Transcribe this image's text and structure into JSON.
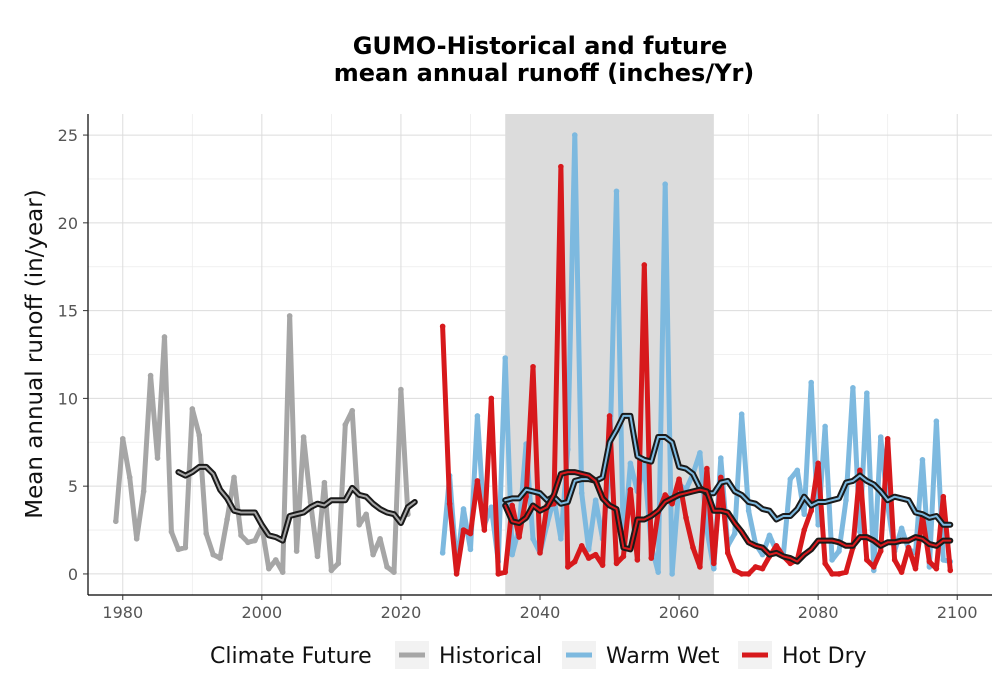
{
  "chart_data": {
    "type": "line",
    "title_lines": [
      "GUMO-Historical and future",
      "mean annual runoff (inches/Yr)"
    ],
    "xlabel": "",
    "ylabel": "Mean annual runoff (in/year)",
    "xlim": [
      1975,
      2105
    ],
    "ylim": [
      -1.2,
      26.2
    ],
    "x_ticks": [
      1980,
      2000,
      2020,
      2040,
      2060,
      2080,
      2100
    ],
    "y_ticks": [
      0,
      5,
      10,
      15,
      20,
      25
    ],
    "grid": true,
    "shaded_period": [
      2035,
      2065
    ],
    "shaded_color": "#dcdcdc",
    "legend": {
      "title": "Climate Future",
      "placement": "bottom",
      "entries": [
        {
          "label": "Historical",
          "color": "#a6a6a6"
        },
        {
          "label": "Warm Wet",
          "color": "#7db9df"
        },
        {
          "label": "Hot Dry",
          "color": "#d7191c"
        }
      ]
    },
    "series": [
      {
        "name": "Historical",
        "color": "#a6a6a6",
        "style": "annual",
        "x": [
          1979,
          1980,
          1981,
          1982,
          1983,
          1984,
          1985,
          1986,
          1987,
          1988,
          1989,
          1990,
          1991,
          1992,
          1993,
          1994,
          1995,
          1996,
          1997,
          1998,
          1999,
          2000,
          2001,
          2002,
          2003,
          2004,
          2005,
          2006,
          2007,
          2008,
          2009,
          2010,
          2011,
          2012,
          2013,
          2014,
          2015,
          2016,
          2017,
          2018,
          2019,
          2020,
          2021,
          2022
        ],
        "y": [
          3.0,
          7.7,
          5.5,
          2.0,
          4.7,
          11.3,
          6.6,
          13.5,
          2.4,
          1.4,
          1.5,
          9.4,
          7.9,
          2.3,
          1.1,
          0.9,
          3.1,
          5.5,
          2.2,
          1.8,
          1.9,
          2.7,
          0.3,
          0.8,
          0.1,
          14.7,
          1.3,
          7.8,
          4.1,
          1.0,
          5.2,
          0.2,
          0.6,
          8.5,
          9.3,
          2.8,
          3.4,
          1.1,
          2.0,
          0.4,
          0.1,
          10.5,
          3.4,
          null
        ]
      },
      {
        "name": "Historical",
        "color": "#1a1a1a",
        "style": "smoothed",
        "x": [
          1988,
          1989,
          1990,
          1991,
          1992,
          1993,
          1994,
          1995,
          1996,
          1997,
          1998,
          1999,
          2000,
          2001,
          2002,
          2003,
          2004,
          2005,
          2006,
          2007,
          2008,
          2009,
          2010,
          2011,
          2012,
          2013,
          2014,
          2015,
          2016,
          2017,
          2018,
          2019,
          2020,
          2021,
          2022
        ],
        "y": [
          5.8,
          5.6,
          5.8,
          6.1,
          6.1,
          5.7,
          4.8,
          4.3,
          3.6,
          3.5,
          3.5,
          3.5,
          2.8,
          2.2,
          2.1,
          1.9,
          3.3,
          3.4,
          3.5,
          3.8,
          4.0,
          3.9,
          4.2,
          4.2,
          4.2,
          4.9,
          4.5,
          4.4,
          4.0,
          3.7,
          3.5,
          3.4,
          2.9,
          3.8,
          4.1
        ]
      },
      {
        "name": "Warm Wet",
        "color": "#7db9df",
        "style": "annual",
        "x": [
          2026,
          2027,
          2028,
          2029,
          2030,
          2031,
          2032,
          2033,
          2034,
          2035,
          2036,
          2037,
          2038,
          2039,
          2040,
          2041,
          2042,
          2043,
          2044,
          2045,
          2046,
          2047,
          2048,
          2049,
          2050,
          2051,
          2052,
          2053,
          2054,
          2055,
          2056,
          2057,
          2058,
          2059,
          2060,
          2061,
          2062,
          2063,
          2064,
          2065,
          2066,
          2067,
          2068,
          2069,
          2070,
          2071,
          2072,
          2073,
          2074,
          2075,
          2076,
          2077,
          2078,
          2079,
          2080,
          2081,
          2082,
          2083,
          2084,
          2085,
          2086,
          2087,
          2088,
          2089,
          2090,
          2091,
          2092,
          2093,
          2094,
          2095,
          2096,
          2097,
          2098,
          2099
        ],
        "y": [
          1.2,
          5.6,
          0.4,
          3.7,
          1.4,
          9.0,
          2.8,
          3.8,
          0.7,
          12.3,
          1.1,
          2.6,
          7.4,
          2.0,
          1.2,
          2.8,
          4.3,
          2.0,
          7.1,
          25.0,
          4.6,
          1.4,
          4.2,
          2.0,
          5.9,
          21.8,
          1.5,
          6.3,
          4.7,
          6.2,
          1.6,
          0.1,
          22.2,
          0.0,
          5.1,
          4.8,
          5.7,
          6.9,
          2.5,
          0.3,
          6.6,
          1.6,
          2.3,
          9.1,
          3.6,
          1.7,
          1.1,
          2.2,
          1.3,
          1.1,
          5.4,
          5.9,
          3.4,
          10.9,
          2.8,
          8.4,
          0.8,
          1.3,
          4.2,
          10.6,
          2.4,
          10.3,
          0.2,
          7.8,
          3.9,
          1.3,
          2.6,
          1.4,
          1.2,
          6.5,
          0.4,
          8.7,
          0.8,
          0.7
        ]
      },
      {
        "name": "Warm Wet",
        "color": "#1a1a1a",
        "style": "smoothed",
        "x": [
          2035,
          2036,
          2037,
          2038,
          2039,
          2040,
          2041,
          2042,
          2043,
          2044,
          2045,
          2046,
          2047,
          2048,
          2049,
          2050,
          2051,
          2052,
          2053,
          2054,
          2055,
          2056,
          2057,
          2058,
          2059,
          2060,
          2061,
          2062,
          2063,
          2064,
          2065,
          2066,
          2067,
          2068,
          2069,
          2070,
          2071,
          2072,
          2073,
          2074,
          2075,
          2076,
          2077,
          2078,
          2079,
          2080,
          2081,
          2082,
          2083,
          2084,
          2085,
          2086,
          2087,
          2088,
          2089,
          2090,
          2091,
          2092,
          2093,
          2094,
          2095,
          2096,
          2097,
          2098,
          2099
        ],
        "y": [
          4.2,
          4.3,
          4.3,
          4.8,
          4.7,
          4.6,
          4.2,
          4.4,
          4.0,
          4.1,
          5.3,
          5.4,
          5.4,
          5.3,
          5.5,
          7.5,
          8.2,
          9.0,
          9.0,
          6.7,
          6.5,
          6.4,
          7.8,
          7.8,
          7.5,
          6.1,
          6.0,
          5.7,
          4.9,
          4.6,
          4.6,
          5.2,
          5.3,
          4.7,
          4.5,
          4.1,
          4.0,
          3.7,
          3.6,
          3.1,
          3.3,
          3.3,
          3.7,
          4.4,
          3.9,
          4.1,
          4.1,
          4.2,
          4.3,
          5.2,
          5.3,
          5.6,
          5.3,
          5.1,
          4.7,
          4.2,
          4.4,
          4.3,
          4.2,
          3.5,
          3.4,
          3.2,
          3.3,
          2.8,
          2.8
        ]
      },
      {
        "name": "Hot Dry",
        "color": "#d7191c",
        "style": "annual",
        "x": [
          2026,
          2027,
          2028,
          2029,
          2030,
          2031,
          2032,
          2033,
          2034,
          2035,
          2036,
          2037,
          2038,
          2039,
          2040,
          2041,
          2042,
          2043,
          2044,
          2045,
          2046,
          2047,
          2048,
          2049,
          2050,
          2051,
          2052,
          2053,
          2054,
          2055,
          2056,
          2057,
          2058,
          2059,
          2060,
          2061,
          2062,
          2063,
          2064,
          2065,
          2066,
          2067,
          2068,
          2069,
          2070,
          2071,
          2072,
          2073,
          2074,
          2075,
          2076,
          2077,
          2078,
          2079,
          2080,
          2081,
          2082,
          2083,
          2084,
          2085,
          2086,
          2087,
          2088,
          2089,
          2090,
          2091,
          2092,
          2093,
          2094,
          2095,
          2096,
          2097,
          2098,
          2099
        ],
        "y": [
          14.1,
          4.0,
          0.0,
          2.5,
          2.3,
          5.3,
          2.5,
          10.0,
          0.0,
          0.1,
          3.9,
          2.1,
          4.4,
          11.8,
          1.2,
          3.9,
          4.0,
          23.2,
          0.4,
          0.7,
          1.6,
          0.9,
          1.1,
          0.5,
          9.0,
          0.6,
          1.0,
          4.8,
          0.8,
          17.6,
          0.9,
          3.5,
          4.5,
          4.0,
          5.4,
          3.2,
          1.5,
          0.4,
          6.0,
          0.6,
          5.5,
          1.2,
          0.2,
          0.0,
          0.0,
          0.4,
          0.3,
          1.0,
          1.6,
          1.0,
          0.6,
          0.8,
          2.5,
          3.6,
          6.3,
          0.6,
          0.0,
          0.0,
          0.1,
          1.5,
          5.9,
          0.8,
          0.4,
          1.3,
          7.7,
          0.8,
          0.1,
          1.5,
          0.3,
          3.3,
          0.7,
          0.3,
          4.4,
          0.2
        ]
      },
      {
        "name": "Hot Dry",
        "color": "#1a1a1a",
        "style": "smoothed",
        "x": [
          2035,
          2036,
          2037,
          2038,
          2039,
          2040,
          2041,
          2042,
          2043,
          2044,
          2045,
          2046,
          2047,
          2048,
          2049,
          2050,
          2051,
          2052,
          2053,
          2054,
          2055,
          2056,
          2057,
          2058,
          2059,
          2060,
          2061,
          2062,
          2063,
          2064,
          2065,
          2066,
          2067,
          2068,
          2069,
          2070,
          2071,
          2072,
          2073,
          2074,
          2075,
          2076,
          2077,
          2078,
          2079,
          2080,
          2081,
          2082,
          2083,
          2084,
          2085,
          2086,
          2087,
          2088,
          2089,
          2090,
          2091,
          2092,
          2093,
          2094,
          2095,
          2096,
          2097,
          2098,
          2099
        ],
        "y": [
          3.9,
          3.0,
          2.9,
          3.2,
          3.9,
          3.6,
          3.8,
          4.5,
          5.7,
          5.8,
          5.8,
          5.7,
          5.6,
          5.3,
          4.3,
          3.9,
          3.7,
          1.5,
          1.4,
          3.1,
          3.1,
          3.3,
          3.6,
          4.1,
          4.3,
          4.5,
          4.6,
          4.7,
          4.8,
          4.7,
          3.6,
          3.6,
          3.5,
          2.9,
          2.4,
          1.8,
          1.6,
          1.5,
          1.1,
          1.2,
          1.0,
          0.9,
          0.7,
          1.1,
          1.4,
          1.9,
          1.9,
          1.9,
          1.8,
          1.6,
          1.6,
          2.1,
          2.1,
          1.9,
          1.6,
          1.8,
          1.8,
          1.9,
          1.9,
          2.1,
          2.0,
          1.7,
          1.6,
          1.9,
          1.9
        ]
      }
    ]
  }
}
